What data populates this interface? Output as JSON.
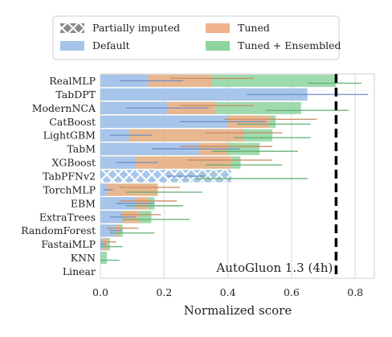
{
  "chart_data": {
    "type": "bar",
    "orientation": "horizontal",
    "title": "",
    "xlabel": "Normalized score",
    "ylabel": "",
    "xlim": [
      0,
      0.86
    ],
    "xticks": [
      0.0,
      0.2,
      0.4,
      0.6,
      0.8
    ],
    "xtick_labels": [
      "0.0",
      "0.2",
      "0.4",
      "0.6",
      "0.8"
    ],
    "grid": "x",
    "legend_position": "top",
    "categories": [
      "RealMLP",
      "TabDPT",
      "ModernNCA",
      "CatBoost",
      "LightGBM",
      "TabM",
      "XGBoost",
      "TabPFNv2",
      "TorchMLP",
      "EBM",
      "ExtraTrees",
      "RandomForest",
      "FastaiMLP",
      "KNN",
      "Linear"
    ],
    "series": [
      {
        "name": "Default",
        "color": "#a7c4ea",
        "values": [
          0.15,
          0.65,
          0.21,
          0.4,
          0.09,
          0.31,
          0.11,
          0.27,
          0.02,
          0.11,
          0.07,
          0.05,
          0.01,
          0.0,
          0.0
        ],
        "ci": [
          [
            0.06,
            0.26
          ],
          [
            0.46,
            0.84
          ],
          [
            0.08,
            0.34
          ],
          [
            0.25,
            0.52
          ],
          [
            0.03,
            0.16
          ],
          [
            0.16,
            0.44
          ],
          [
            0.05,
            0.18
          ],
          [
            0.21,
            0.33
          ],
          [
            0.01,
            0.04
          ],
          [
            0.05,
            0.17
          ],
          [
            0.03,
            0.11
          ],
          [
            0.03,
            0.07
          ],
          [
            0.0,
            0.02
          ],
          null,
          null
        ]
      },
      {
        "name": "Tuned",
        "color": "#f0b38c",
        "values": [
          0.35,
          null,
          0.36,
          0.53,
          0.45,
          0.4,
          0.41,
          null,
          0.18,
          0.15,
          0.12,
          0.06,
          0.02,
          0.0,
          0.0
        ],
        "ci": [
          [
            0.22,
            0.48
          ],
          null,
          [
            0.25,
            0.48
          ],
          [
            0.39,
            0.68
          ],
          [
            0.33,
            0.57
          ],
          [
            0.25,
            0.54
          ],
          [
            0.27,
            0.54
          ],
          null,
          [
            0.06,
            0.25
          ],
          [
            0.06,
            0.24
          ],
          [
            0.06,
            0.19
          ],
          [
            0.02,
            0.12
          ],
          [
            0.0,
            0.05
          ],
          null,
          null
        ]
      },
      {
        "name": "Tuned + Ensembled",
        "color": "#8ed3a0",
        "values": [
          0.74,
          null,
          0.63,
          0.55,
          0.54,
          0.5,
          0.44,
          0.41,
          0.18,
          0.17,
          0.16,
          0.07,
          0.03,
          0.02,
          0.0
        ],
        "ci": [
          [
            0.65,
            0.82
          ],
          null,
          [
            0.52,
            0.78
          ],
          [
            0.43,
            0.66
          ],
          [
            0.42,
            0.66
          ],
          [
            0.35,
            0.62
          ],
          [
            0.33,
            0.57
          ],
          [
            0.3,
            0.65
          ],
          [
            0.08,
            0.32
          ],
          [
            0.08,
            0.26
          ],
          [
            0.07,
            0.28
          ],
          [
            0.03,
            0.17
          ],
          [
            0.0,
            0.07
          ],
          [
            0.0,
            0.06
          ],
          null
        ]
      },
      {
        "name": "Partially imputed",
        "color": "#8a8a8a",
        "pattern": "crosshatch",
        "applies_to": [
          "TabPFNv2"
        ],
        "values": [
          null,
          null,
          null,
          null,
          null,
          null,
          null,
          0.41,
          null,
          null,
          null,
          null,
          null,
          null,
          null
        ]
      }
    ],
    "reference_line": {
      "label": "AutoGluon 1.3 (4h)",
      "x": 0.74,
      "style": "dashed",
      "color": "#000000"
    }
  },
  "legend": {
    "items": [
      {
        "label": "Partially imputed",
        "key": "partially_imputed"
      },
      {
        "label": "Tuned",
        "key": "tuned"
      },
      {
        "label": "Default",
        "key": "default"
      },
      {
        "label": "Tuned + Ensembled",
        "key": "tuned_ensembled"
      }
    ]
  }
}
